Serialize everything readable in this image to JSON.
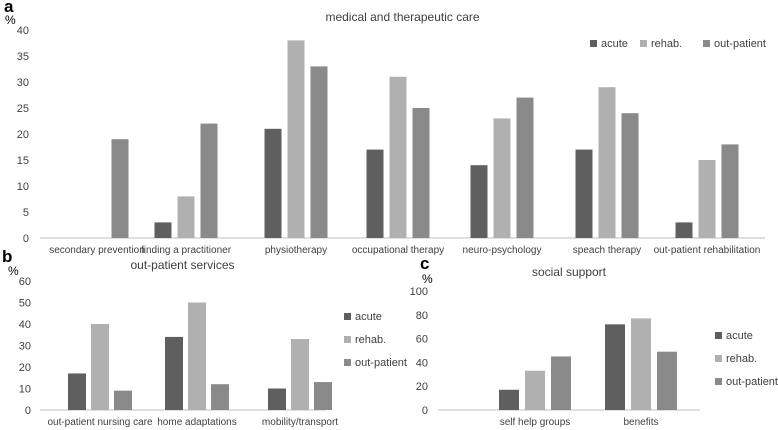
{
  "chart_data": [
    {
      "panel_label": "a",
      "type": "bar",
      "title": "medical and therapeutic care",
      "ylabel": "%",
      "ylim": [
        0,
        40
      ],
      "yticks": [
        0,
        5,
        10,
        15,
        20,
        25,
        30,
        35,
        40
      ],
      "legend_position": "top-right",
      "categories": [
        "secondary prevention",
        "finding a  practitioner",
        "physiotherapy",
        "occupational therapy",
        "neuro-psychology",
        "speach therapy",
        "out-patient rehabilitation"
      ],
      "series": [
        {
          "name": "acute",
          "color": "#5f5f5f",
          "values": [
            0,
            3,
            21,
            17,
            14,
            17,
            3
          ]
        },
        {
          "name": "rehab.",
          "color": "#b0b0b0",
          "values": [
            0,
            8,
            38,
            31,
            23,
            29,
            15
          ]
        },
        {
          "name": "out-patient",
          "color": "#8a8a8a",
          "values": [
            19,
            22,
            33,
            25,
            27,
            24,
            18
          ]
        }
      ]
    },
    {
      "panel_label": "b",
      "type": "bar",
      "title": "out-patient services",
      "ylabel": "%",
      "ylim": [
        0,
        60
      ],
      "yticks": [
        0,
        10,
        20,
        30,
        40,
        50,
        60
      ],
      "legend_position": "right",
      "categories": [
        "out-patient nursing care",
        "home adaptations",
        "mobility/transport"
      ],
      "series": [
        {
          "name": "acute",
          "color": "#5f5f5f",
          "values": [
            17,
            34,
            10
          ]
        },
        {
          "name": "rehab.",
          "color": "#b0b0b0",
          "values": [
            40,
            50,
            33
          ]
        },
        {
          "name": "out-patient",
          "color": "#8a8a8a",
          "values": [
            9,
            12,
            13
          ]
        }
      ]
    },
    {
      "panel_label": "c",
      "type": "bar",
      "title": "social support",
      "ylabel": "%",
      "ylim": [
        0,
        100
      ],
      "yticks": [
        0,
        20,
        40,
        60,
        80,
        100
      ],
      "legend_position": "right",
      "categories": [
        "self help groups",
        "benefits"
      ],
      "series": [
        {
          "name": "acute",
          "color": "#5f5f5f",
          "values": [
            17,
            72
          ]
        },
        {
          "name": "rehab.",
          "color": "#b0b0b0",
          "values": [
            33,
            77
          ]
        },
        {
          "name": "out-patient",
          "color": "#8a8a8a",
          "values": [
            45,
            49
          ]
        }
      ]
    }
  ]
}
